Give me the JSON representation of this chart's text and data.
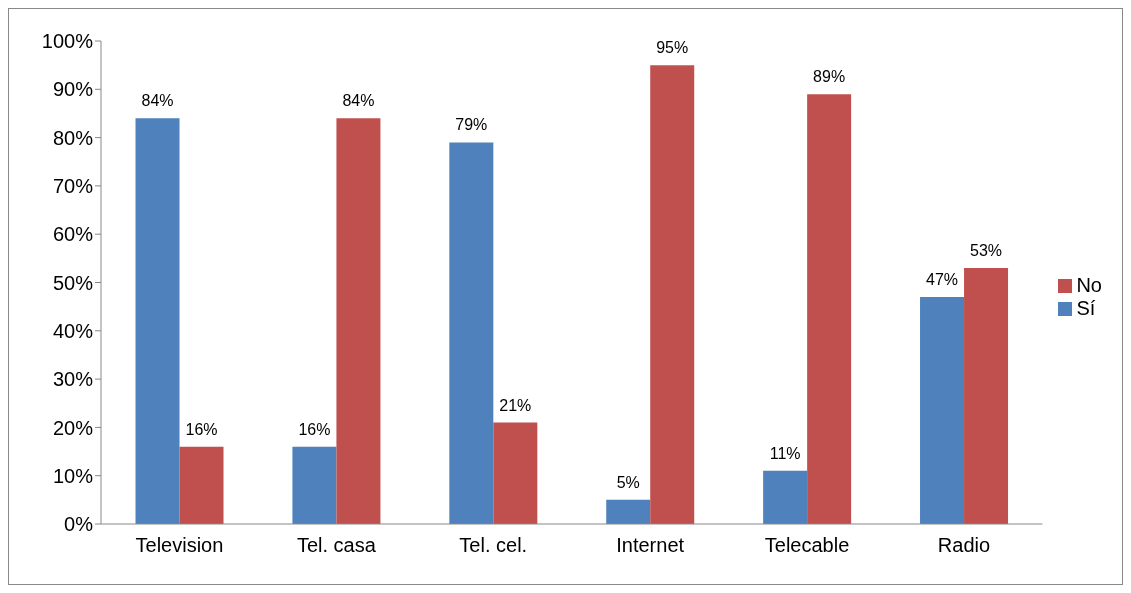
{
  "chart_data": {
    "type": "bar",
    "categories": [
      "Television",
      "Tel. casa",
      "Tel. cel.",
      "Internet",
      "Telecable",
      "Radio"
    ],
    "series": [
      {
        "name": "Sí",
        "color": "#4f81bd",
        "values": [
          84,
          16,
          79,
          5,
          11,
          47
        ],
        "value_labels": [
          "84%",
          "16%",
          "79%",
          "5%",
          "11%",
          "47%"
        ]
      },
      {
        "name": "No",
        "color": "#c0504d",
        "values": [
          16,
          84,
          21,
          95,
          89,
          53
        ],
        "value_labels": [
          "16%",
          "84%",
          "21%",
          "95%",
          "89%",
          "53%"
        ]
      }
    ],
    "ylim": [
      0,
      100
    ],
    "yticks": [
      {
        "value": 0,
        "label": "0%"
      },
      {
        "value": 10,
        "label": "10%"
      },
      {
        "value": 20,
        "label": "20%"
      },
      {
        "value": 30,
        "label": "30%"
      },
      {
        "value": 40,
        "label": "40%"
      },
      {
        "value": 50,
        "label": "50%"
      },
      {
        "value": 60,
        "label": "60%"
      },
      {
        "value": 70,
        "label": "70%"
      },
      {
        "value": 80,
        "label": "80%"
      },
      {
        "value": 90,
        "label": "90%"
      },
      {
        "value": 100,
        "label": "100%"
      }
    ],
    "grid": false,
    "legend": "right"
  }
}
